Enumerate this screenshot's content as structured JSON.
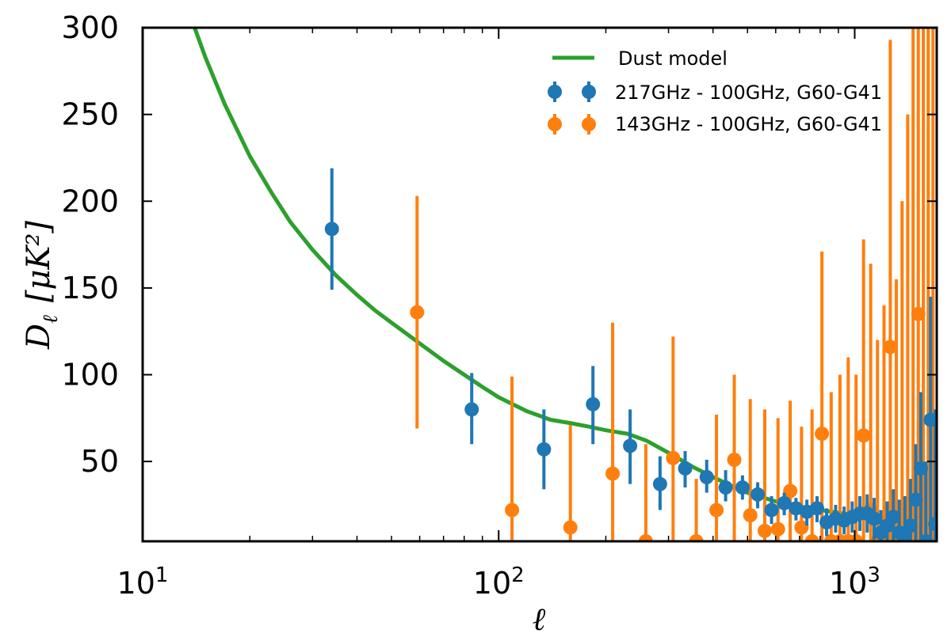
{
  "chart_data": {
    "type": "scatter",
    "title": "",
    "xlabel": "ℓ",
    "ylabel_main": "D",
    "ylabel_sub": "ℓ",
    "ylabel_units": "[μK²]",
    "x_scale": "log",
    "xlim": [
      10,
      1700
    ],
    "ylim": [
      4,
      300
    ],
    "x_tick_labels": [
      {
        "value": 10,
        "base": "10",
        "exp": "1"
      },
      {
        "value": 100,
        "base": "10",
        "exp": "2"
      },
      {
        "value": 1000,
        "base": "10",
        "exp": "3"
      }
    ],
    "y_ticks": [
      50,
      100,
      150,
      200,
      250,
      300
    ],
    "y_tick_labels": [
      "50",
      "100",
      "150",
      "200",
      "250",
      "300"
    ],
    "legend_position": "top-right",
    "model": {
      "name": "Dust model",
      "color": "#2ca02c",
      "x": [
        14,
        15,
        17,
        20,
        23,
        26,
        30,
        35,
        40,
        45,
        50,
        60,
        70,
        80,
        90,
        100,
        120,
        140,
        160,
        180,
        200,
        230,
        260,
        300,
        350,
        400,
        450,
        500,
        600,
        700,
        800,
        1000,
        1200,
        1400,
        1700
      ],
      "y": [
        300,
        283,
        256,
        226,
        205,
        188,
        172,
        157,
        146,
        137,
        130,
        118,
        108,
        100,
        93,
        87,
        79,
        74,
        72,
        70,
        68,
        66,
        62,
        55,
        47,
        41,
        36,
        32,
        27,
        24,
        22,
        19,
        17,
        15,
        13
      ]
    },
    "series": [
      {
        "name": "217GHz - 100GHz, G60-G41",
        "color": "#1f77b4",
        "points": [
          {
            "x": 34,
            "y": 184,
            "lo": 149,
            "hi": 219
          },
          {
            "x": 84,
            "y": 80,
            "lo": 60,
            "hi": 101
          },
          {
            "x": 134,
            "y": 57,
            "lo": 34,
            "hi": 80
          },
          {
            "x": 184,
            "y": 83,
            "lo": 60,
            "hi": 105
          },
          {
            "x": 234,
            "y": 59,
            "lo": 37,
            "hi": 80
          },
          {
            "x": 284,
            "y": 37,
            "lo": 22,
            "hi": 53
          },
          {
            "x": 334,
            "y": 46,
            "lo": 35,
            "hi": 56
          },
          {
            "x": 384,
            "y": 41,
            "lo": 32,
            "hi": 51
          },
          {
            "x": 434,
            "y": 35,
            "lo": 27,
            "hi": 45
          },
          {
            "x": 484,
            "y": 35,
            "lo": 28,
            "hi": 42
          },
          {
            "x": 534,
            "y": 31,
            "lo": 23,
            "hi": 38
          },
          {
            "x": 584,
            "y": 22,
            "lo": 14,
            "hi": 30
          },
          {
            "x": 634,
            "y": 26,
            "lo": 19,
            "hi": 32
          },
          {
            "x": 684,
            "y": 23,
            "lo": 16,
            "hi": 29
          },
          {
            "x": 734,
            "y": 21,
            "lo": 13,
            "hi": 28
          },
          {
            "x": 784,
            "y": 23,
            "lo": 15,
            "hi": 30
          },
          {
            "x": 834,
            "y": 15,
            "lo": 7,
            "hi": 23
          },
          {
            "x": 884,
            "y": 17,
            "lo": 9,
            "hi": 25
          },
          {
            "x": 934,
            "y": 16,
            "lo": 8,
            "hi": 24
          },
          {
            "x": 984,
            "y": 18,
            "lo": 9,
            "hi": 27
          },
          {
            "x": 1034,
            "y": 20,
            "lo": 10,
            "hi": 30
          },
          {
            "x": 1084,
            "y": 20,
            "lo": 9,
            "hi": 31
          },
          {
            "x": 1134,
            "y": 17,
            "lo": 5,
            "hi": 29
          },
          {
            "x": 1184,
            "y": 9,
            "lo": 4,
            "hi": 22
          },
          {
            "x": 1234,
            "y": 13,
            "lo": 4,
            "hi": 27
          },
          {
            "x": 1284,
            "y": 18,
            "lo": 4,
            "hi": 34
          },
          {
            "x": 1334,
            "y": 9,
            "lo": 4,
            "hi": 28
          },
          {
            "x": 1384,
            "y": 7,
            "lo": 4,
            "hi": 30
          },
          {
            "x": 1434,
            "y": 13,
            "lo": 4,
            "hi": 40
          },
          {
            "x": 1484,
            "y": 28,
            "lo": 4,
            "hi": 60
          },
          {
            "x": 1534,
            "y": 46,
            "lo": 4,
            "hi": 90
          },
          {
            "x": 1584,
            "y": 4,
            "lo": 4,
            "hi": 50
          },
          {
            "x": 1634,
            "y": 74,
            "lo": 4,
            "hi": 145
          },
          {
            "x": 1684,
            "y": 14,
            "lo": 4,
            "hi": 80
          }
        ]
      },
      {
        "name": "143GHz - 100GHz, G60-G41",
        "color": "#ff7f0e",
        "points": [
          {
            "x": 59,
            "y": 136,
            "lo": 69,
            "hi": 203
          },
          {
            "x": 109,
            "y": 22,
            "lo": 4,
            "hi": 99
          },
          {
            "x": 159,
            "y": 12,
            "lo": 4,
            "hi": 71
          },
          {
            "x": 209,
            "y": 43,
            "lo": 4,
            "hi": 130
          },
          {
            "x": 259,
            "y": 4,
            "lo": 4,
            "hi": 60
          },
          {
            "x": 309,
            "y": 52,
            "lo": 4,
            "hi": 122
          },
          {
            "x": 359,
            "y": 4,
            "lo": 4,
            "hi": 40
          },
          {
            "x": 409,
            "y": 22,
            "lo": 4,
            "hi": 77
          },
          {
            "x": 459,
            "y": 51,
            "lo": 4,
            "hi": 100
          },
          {
            "x": 509,
            "y": 19,
            "lo": 4,
            "hi": 86
          },
          {
            "x": 559,
            "y": 10,
            "lo": 4,
            "hi": 80
          },
          {
            "x": 609,
            "y": 11,
            "lo": 4,
            "hi": 75
          },
          {
            "x": 659,
            "y": 33,
            "lo": 4,
            "hi": 85
          },
          {
            "x": 709,
            "y": 12,
            "lo": 4,
            "hi": 70
          },
          {
            "x": 759,
            "y": 4,
            "lo": 4,
            "hi": 80
          },
          {
            "x": 809,
            "y": 66,
            "lo": 4,
            "hi": 171
          },
          {
            "x": 859,
            "y": 4,
            "lo": 4,
            "hi": 90
          },
          {
            "x": 909,
            "y": 4,
            "lo": 4,
            "hi": 100
          },
          {
            "x": 959,
            "y": 4,
            "lo": 4,
            "hi": 110
          },
          {
            "x": 1009,
            "y": 4,
            "lo": 4,
            "hi": 100
          },
          {
            "x": 1059,
            "y": 65,
            "lo": 4,
            "hi": 178
          },
          {
            "x": 1109,
            "y": 22,
            "lo": 4,
            "hi": 164
          },
          {
            "x": 1159,
            "y": 4,
            "lo": 4,
            "hi": 120
          },
          {
            "x": 1209,
            "y": 4,
            "lo": 4,
            "hi": 140
          },
          {
            "x": 1259,
            "y": 116,
            "lo": 4,
            "hi": 293
          },
          {
            "x": 1309,
            "y": 4,
            "lo": 4,
            "hi": 155
          },
          {
            "x": 1359,
            "y": 14,
            "lo": 4,
            "hi": 200
          },
          {
            "x": 1409,
            "y": 4,
            "lo": 4,
            "hi": 250
          },
          {
            "x": 1459,
            "y": 4,
            "lo": 4,
            "hi": 300
          },
          {
            "x": 1509,
            "y": 135,
            "lo": 4,
            "hi": 300
          },
          {
            "x": 1559,
            "y": 4,
            "lo": 4,
            "hi": 300
          },
          {
            "x": 1609,
            "y": 4,
            "lo": 4,
            "hi": 300
          },
          {
            "x": 1659,
            "y": 4,
            "lo": 4,
            "hi": 300
          }
        ]
      }
    ]
  }
}
